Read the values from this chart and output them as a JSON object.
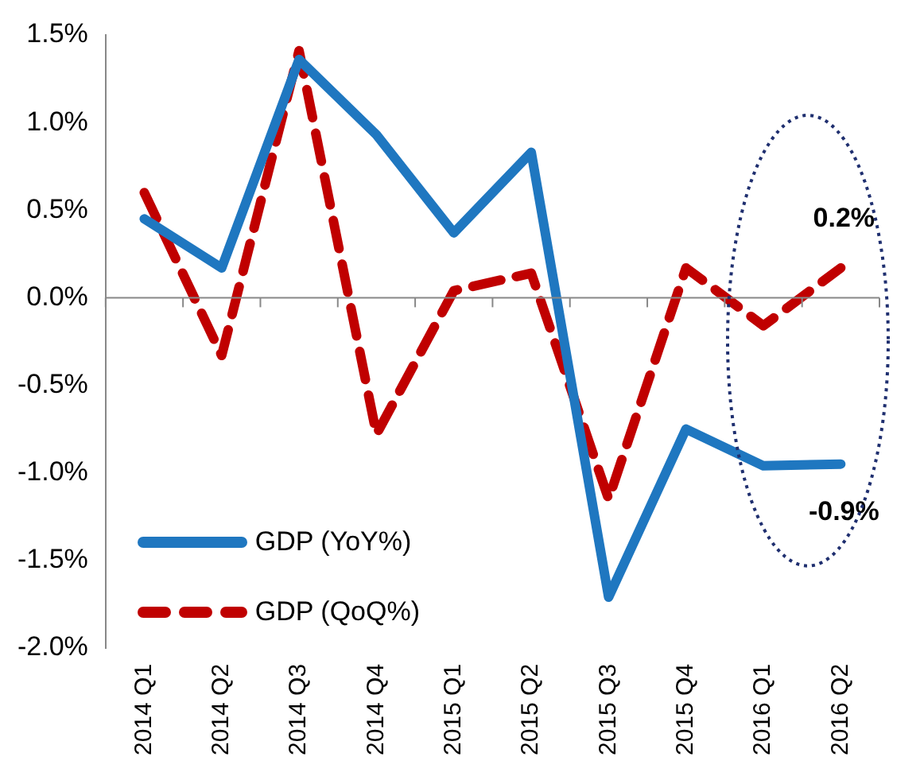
{
  "chart_data": {
    "type": "line",
    "categories": [
      "2014 Q1",
      "2014 Q2",
      "2014 Q3",
      "2014 Q4",
      "2015 Q1",
      "2015 Q2",
      "2015 Q3",
      "2015 Q4",
      "2016 Q1",
      "2016 Q2"
    ],
    "series": [
      {
        "name": "GDP (YoY%)",
        "color": "#1f77c0",
        "line_style": "solid",
        "values": [
          0.45,
          0.17,
          1.36,
          0.93,
          0.37,
          0.83,
          -1.71,
          -0.75,
          -0.96,
          -0.95
        ],
        "value_labels": [
          null,
          null,
          null,
          null,
          null,
          null,
          null,
          null,
          null,
          "-0.9%"
        ]
      },
      {
        "name": "GDP (QoQ%)",
        "color": "#c00000",
        "line_style": "dashed",
        "values": [
          0.6,
          -0.33,
          1.41,
          -0.78,
          0.04,
          0.14,
          -1.15,
          0.17,
          -0.16,
          0.17
        ],
        "value_labels": [
          null,
          null,
          null,
          null,
          null,
          null,
          null,
          null,
          null,
          "0.2%"
        ]
      }
    ],
    "ylim": [
      -2,
      1.5
    ],
    "yticks": [
      {
        "value": 1.5,
        "label": "1.5%"
      },
      {
        "value": 1,
        "label": "1.0%"
      },
      {
        "value": 0.5,
        "label": "0.5%"
      },
      {
        "value": 0,
        "label": "0.0%"
      },
      {
        "value": -0.5,
        "label": "-0.5%"
      },
      {
        "value": -1,
        "label": "-1.0%"
      },
      {
        "value": -1.5,
        "label": "-1.5%"
      },
      {
        "value": -2,
        "label": "-2.0%"
      }
    ],
    "legend": "bottom left",
    "marker": "none"
  }
}
